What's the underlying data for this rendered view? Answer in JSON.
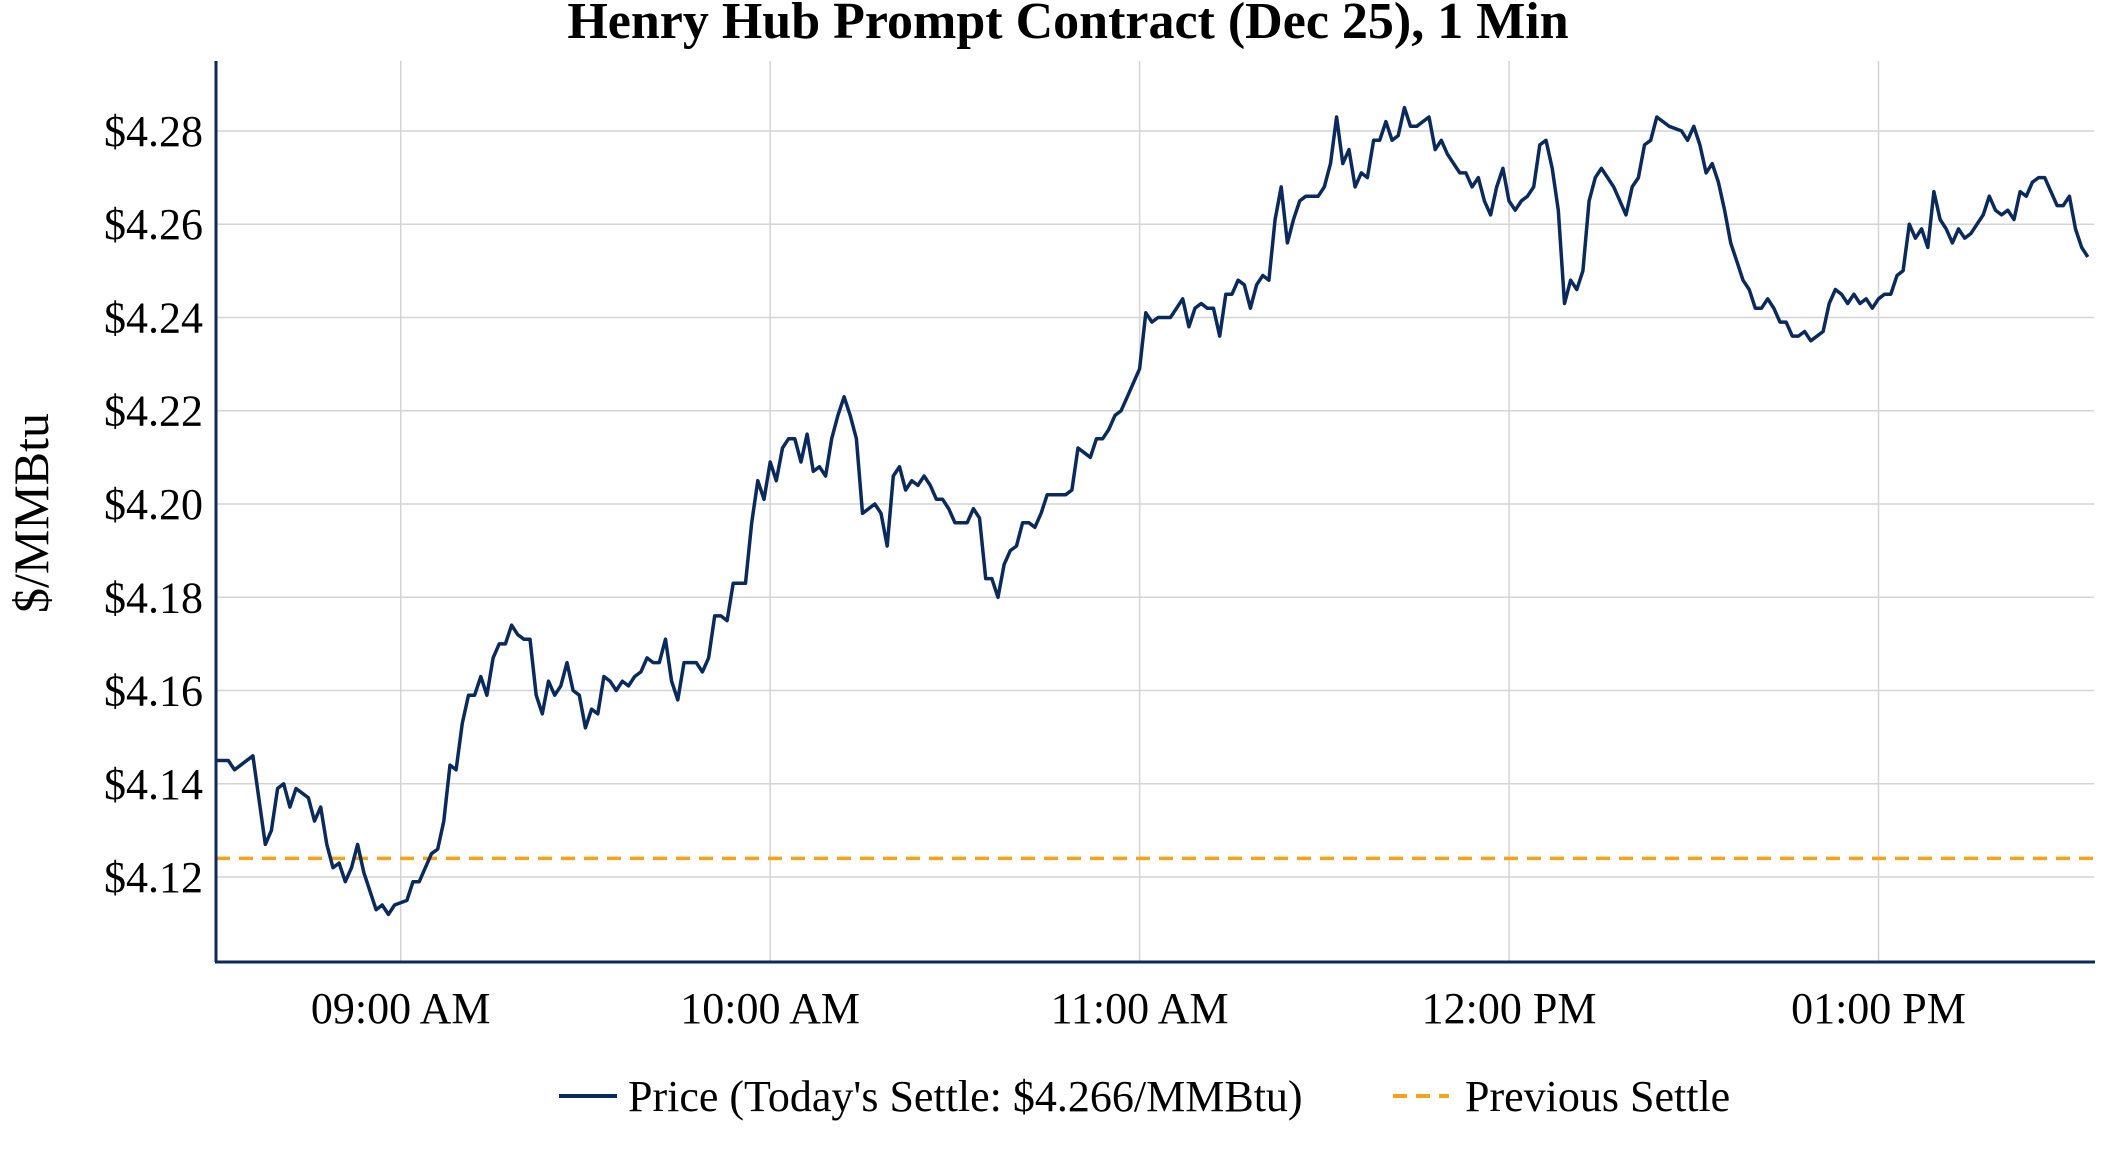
{
  "chart_data": {
    "type": "line",
    "title": "Henry Hub Prompt Contract (Dec 25), 1 Min",
    "xlabel": "",
    "ylabel": "$/MMBtu",
    "xlim": [
      "08:30",
      "13:35"
    ],
    "ylim": [
      4.102,
      4.295
    ],
    "x_ticks": [
      {
        "time": "09:00",
        "label": "09:00 AM"
      },
      {
        "time": "10:00",
        "label": "10:00 AM"
      },
      {
        "time": "11:00",
        "label": "11:00 AM"
      },
      {
        "time": "12:00",
        "label": "12:00 PM"
      },
      {
        "time": "13:00",
        "label": "01:00 PM"
      }
    ],
    "y_ticks": [
      {
        "value": 4.12,
        "label": "$4.12"
      },
      {
        "value": 4.14,
        "label": "$4.14"
      },
      {
        "value": 4.16,
        "label": "$4.16"
      },
      {
        "value": 4.18,
        "label": "$4.18"
      },
      {
        "value": 4.2,
        "label": "$4.20"
      },
      {
        "value": 4.22,
        "label": "$4.22"
      },
      {
        "value": 4.24,
        "label": "$4.24"
      },
      {
        "value": 4.26,
        "label": "$4.26"
      },
      {
        "value": 4.28,
        "label": "$4.28"
      }
    ],
    "grid": true,
    "legend_placement": "bottom-center",
    "colors": {
      "price": "#0b2a5c",
      "previous_settle": "#f7a21b",
      "axis": "#0b2a5c",
      "grid": "#d4d4d4"
    },
    "series": [
      {
        "name": "Price (Today's Settle: $4.266/MMBtu)",
        "style": "solid",
        "points": [
          [
            "08:30",
            4.145
          ],
          [
            "08:32",
            4.145
          ],
          [
            "08:33",
            4.143
          ],
          [
            "08:36",
            4.146
          ],
          [
            "08:38",
            4.127
          ],
          [
            "08:39",
            4.13
          ],
          [
            "08:40",
            4.139
          ],
          [
            "08:41",
            4.14
          ],
          [
            "08:42",
            4.135
          ],
          [
            "08:43",
            4.139
          ],
          [
            "08:45",
            4.137
          ],
          [
            "08:46",
            4.132
          ],
          [
            "08:47",
            4.135
          ],
          [
            "08:48",
            4.127
          ],
          [
            "08:49",
            4.122
          ],
          [
            "08:50",
            4.123
          ],
          [
            "08:51",
            4.119
          ],
          [
            "08:52",
            4.122
          ],
          [
            "08:53",
            4.127
          ],
          [
            "08:54",
            4.121
          ],
          [
            "08:56",
            4.113
          ],
          [
            "08:57",
            4.114
          ],
          [
            "08:58",
            4.112
          ],
          [
            "08:59",
            4.114
          ],
          [
            "09:01",
            4.115
          ],
          [
            "09:02",
            4.119
          ],
          [
            "09:03",
            4.119
          ],
          [
            "09:05",
            4.125
          ],
          [
            "09:06",
            4.126
          ],
          [
            "09:07",
            4.132
          ],
          [
            "09:08",
            4.144
          ],
          [
            "09:09",
            4.143
          ],
          [
            "09:10",
            4.153
          ],
          [
            "09:11",
            4.159
          ],
          [
            "09:12",
            4.159
          ],
          [
            "09:13",
            4.163
          ],
          [
            "09:14",
            4.159
          ],
          [
            "09:15",
            4.167
          ],
          [
            "09:16",
            4.17
          ],
          [
            "09:17",
            4.17
          ],
          [
            "09:18",
            4.174
          ],
          [
            "09:19",
            4.172
          ],
          [
            "09:20",
            4.171
          ],
          [
            "09:21",
            4.171
          ],
          [
            "09:22",
            4.159
          ],
          [
            "09:23",
            4.155
          ],
          [
            "09:24",
            4.162
          ],
          [
            "09:25",
            4.159
          ],
          [
            "09:26",
            4.161
          ],
          [
            "09:27",
            4.166
          ],
          [
            "09:28",
            4.16
          ],
          [
            "09:29",
            4.159
          ],
          [
            "09:30",
            4.152
          ],
          [
            "09:31",
            4.156
          ],
          [
            "09:32",
            4.155
          ],
          [
            "09:33",
            4.163
          ],
          [
            "09:34",
            4.162
          ],
          [
            "09:35",
            4.16
          ],
          [
            "09:36",
            4.162
          ],
          [
            "09:37",
            4.161
          ],
          [
            "09:38",
            4.163
          ],
          [
            "09:39",
            4.164
          ],
          [
            "09:40",
            4.167
          ],
          [
            "09:41",
            4.166
          ],
          [
            "09:42",
            4.166
          ],
          [
            "09:43",
            4.171
          ],
          [
            "09:44",
            4.162
          ],
          [
            "09:45",
            4.158
          ],
          [
            "09:46",
            4.166
          ],
          [
            "09:47",
            4.166
          ],
          [
            "09:48",
            4.166
          ],
          [
            "09:49",
            4.164
          ],
          [
            "09:50",
            4.167
          ],
          [
            "09:51",
            4.176
          ],
          [
            "09:52",
            4.176
          ],
          [
            "09:53",
            4.175
          ],
          [
            "09:54",
            4.183
          ],
          [
            "09:56",
            4.183
          ],
          [
            "09:57",
            4.196
          ],
          [
            "09:58",
            4.205
          ],
          [
            "09:59",
            4.201
          ],
          [
            "10:00",
            4.209
          ],
          [
            "10:01",
            4.205
          ],
          [
            "10:02",
            4.212
          ],
          [
            "10:03",
            4.214
          ],
          [
            "10:04",
            4.214
          ],
          [
            "10:05",
            4.209
          ],
          [
            "10:06",
            4.215
          ],
          [
            "10:07",
            4.207
          ],
          [
            "10:08",
            4.208
          ],
          [
            "10:09",
            4.206
          ],
          [
            "10:10",
            4.214
          ],
          [
            "10:11",
            4.219
          ],
          [
            "10:12",
            4.223
          ],
          [
            "10:13",
            4.219
          ],
          [
            "10:14",
            4.214
          ],
          [
            "10:15",
            4.198
          ],
          [
            "10:16",
            4.199
          ],
          [
            "10:17",
            4.2
          ],
          [
            "10:18",
            4.198
          ],
          [
            "10:19",
            4.191
          ],
          [
            "10:20",
            4.206
          ],
          [
            "10:21",
            4.208
          ],
          [
            "10:22",
            4.203
          ],
          [
            "10:23",
            4.205
          ],
          [
            "10:24",
            4.204
          ],
          [
            "10:25",
            4.206
          ],
          [
            "10:26",
            4.204
          ],
          [
            "10:27",
            4.201
          ],
          [
            "10:28",
            4.201
          ],
          [
            "10:29",
            4.199
          ],
          [
            "10:30",
            4.196
          ],
          [
            "10:32",
            4.196
          ],
          [
            "10:33",
            4.199
          ],
          [
            "10:34",
            4.197
          ],
          [
            "10:35",
            4.184
          ],
          [
            "10:36",
            4.184
          ],
          [
            "10:37",
            4.18
          ],
          [
            "10:38",
            4.187
          ],
          [
            "10:39",
            4.19
          ],
          [
            "10:40",
            4.191
          ],
          [
            "10:41",
            4.196
          ],
          [
            "10:42",
            4.196
          ],
          [
            "10:43",
            4.195
          ],
          [
            "10:44",
            4.198
          ],
          [
            "10:45",
            4.202
          ],
          [
            "10:48",
            4.202
          ],
          [
            "10:49",
            4.203
          ],
          [
            "10:50",
            4.212
          ],
          [
            "10:51",
            4.211
          ],
          [
            "10:52",
            4.21
          ],
          [
            "10:53",
            4.214
          ],
          [
            "10:54",
            4.214
          ],
          [
            "10:55",
            4.216
          ],
          [
            "10:56",
            4.219
          ],
          [
            "10:57",
            4.22
          ],
          [
            "10:58",
            4.223
          ],
          [
            "11:00",
            4.229
          ],
          [
            "11:01",
            4.241
          ],
          [
            "11:02",
            4.239
          ],
          [
            "11:03",
            4.24
          ],
          [
            "11:05",
            4.24
          ],
          [
            "11:06",
            4.242
          ],
          [
            "11:07",
            4.244
          ],
          [
            "11:08",
            4.238
          ],
          [
            "11:09",
            4.242
          ],
          [
            "11:10",
            4.243
          ],
          [
            "11:11",
            4.242
          ],
          [
            "11:12",
            4.242
          ],
          [
            "11:13",
            4.236
          ],
          [
            "11:14",
            4.245
          ],
          [
            "11:15",
            4.245
          ],
          [
            "11:16",
            4.248
          ],
          [
            "11:17",
            4.247
          ],
          [
            "11:18",
            4.242
          ],
          [
            "11:19",
            4.247
          ],
          [
            "11:20",
            4.249
          ],
          [
            "11:21",
            4.248
          ],
          [
            "11:22",
            4.261
          ],
          [
            "11:23",
            4.268
          ],
          [
            "11:24",
            4.256
          ],
          [
            "11:25",
            4.261
          ],
          [
            "11:26",
            4.265
          ],
          [
            "11:27",
            4.266
          ],
          [
            "11:29",
            4.266
          ],
          [
            "11:30",
            4.268
          ],
          [
            "11:31",
            4.273
          ],
          [
            "11:32",
            4.283
          ],
          [
            "11:33",
            4.273
          ],
          [
            "11:34",
            4.276
          ],
          [
            "11:35",
            4.268
          ],
          [
            "11:36",
            4.271
          ],
          [
            "11:37",
            4.27
          ],
          [
            "11:38",
            4.278
          ],
          [
            "11:39",
            4.278
          ],
          [
            "11:40",
            4.282
          ],
          [
            "11:41",
            4.278
          ],
          [
            "11:42",
            4.279
          ],
          [
            "11:43",
            4.285
          ],
          [
            "11:44",
            4.281
          ],
          [
            "11:45",
            4.281
          ],
          [
            "11:47",
            4.283
          ],
          [
            "11:48",
            4.276
          ],
          [
            "11:49",
            4.278
          ],
          [
            "11:50",
            4.275
          ],
          [
            "11:52",
            4.271
          ],
          [
            "11:53",
            4.271
          ],
          [
            "11:54",
            4.268
          ],
          [
            "11:55",
            4.27
          ],
          [
            "11:56",
            4.265
          ],
          [
            "11:57",
            4.262
          ],
          [
            "11:58",
            4.268
          ],
          [
            "11:59",
            4.272
          ],
          [
            "12:00",
            4.265
          ],
          [
            "12:01",
            4.263
          ],
          [
            "12:02",
            4.265
          ],
          [
            "12:03",
            4.266
          ],
          [
            "12:04",
            4.268
          ],
          [
            "12:05",
            4.277
          ],
          [
            "12:06",
            4.278
          ],
          [
            "12:07",
            4.272
          ],
          [
            "12:08",
            4.263
          ],
          [
            "12:09",
            4.243
          ],
          [
            "12:10",
            4.248
          ],
          [
            "12:11",
            4.246
          ],
          [
            "12:12",
            4.25
          ],
          [
            "12:13",
            4.265
          ],
          [
            "12:14",
            4.27
          ],
          [
            "12:15",
            4.272
          ],
          [
            "12:16",
            4.27
          ],
          [
            "12:17",
            4.268
          ],
          [
            "12:18",
            4.265
          ],
          [
            "12:19",
            4.262
          ],
          [
            "12:20",
            4.268
          ],
          [
            "12:21",
            4.27
          ],
          [
            "12:22",
            4.277
          ],
          [
            "12:23",
            4.278
          ],
          [
            "12:24",
            4.283
          ],
          [
            "12:25",
            4.282
          ],
          [
            "12:26",
            4.281
          ],
          [
            "12:28",
            4.28
          ],
          [
            "12:29",
            4.278
          ],
          [
            "12:30",
            4.281
          ],
          [
            "12:31",
            4.277
          ],
          [
            "12:32",
            4.271
          ],
          [
            "12:33",
            4.273
          ],
          [
            "12:34",
            4.269
          ],
          [
            "12:35",
            4.263
          ],
          [
            "12:36",
            4.256
          ],
          [
            "12:37",
            4.252
          ],
          [
            "12:38",
            4.248
          ],
          [
            "12:39",
            4.246
          ],
          [
            "12:40",
            4.242
          ],
          [
            "12:41",
            4.242
          ],
          [
            "12:42",
            4.244
          ],
          [
            "12:43",
            4.242
          ],
          [
            "12:44",
            4.239
          ],
          [
            "12:45",
            4.239
          ],
          [
            "12:46",
            4.236
          ],
          [
            "12:47",
            4.236
          ],
          [
            "12:48",
            4.237
          ],
          [
            "12:49",
            4.235
          ],
          [
            "12:51",
            4.237
          ],
          [
            "12:52",
            4.243
          ],
          [
            "12:53",
            4.246
          ],
          [
            "12:54",
            4.245
          ],
          [
            "12:55",
            4.243
          ],
          [
            "12:56",
            4.245
          ],
          [
            "12:57",
            4.243
          ],
          [
            "12:58",
            4.244
          ],
          [
            "12:59",
            4.242
          ],
          [
            "13:00",
            4.244
          ],
          [
            "13:01",
            4.245
          ],
          [
            "13:02",
            4.245
          ],
          [
            "13:03",
            4.249
          ],
          [
            "13:04",
            4.25
          ],
          [
            "13:05",
            4.26
          ],
          [
            "13:06",
            4.257
          ],
          [
            "13:07",
            4.259
          ],
          [
            "13:08",
            4.255
          ],
          [
            "13:09",
            4.267
          ],
          [
            "13:10",
            4.261
          ],
          [
            "13:11",
            4.259
          ],
          [
            "13:12",
            4.256
          ],
          [
            "13:13",
            4.259
          ],
          [
            "13:14",
            4.257
          ],
          [
            "13:15",
            4.258
          ],
          [
            "13:16",
            4.26
          ],
          [
            "13:17",
            4.262
          ],
          [
            "13:18",
            4.266
          ],
          [
            "13:19",
            4.263
          ],
          [
            "13:20",
            4.262
          ],
          [
            "13:21",
            4.263
          ],
          [
            "13:22",
            4.261
          ],
          [
            "13:23",
            4.267
          ],
          [
            "13:24",
            4.266
          ],
          [
            "13:25",
            4.269
          ],
          [
            "13:26",
            4.27
          ],
          [
            "13:27",
            4.27
          ],
          [
            "13:28",
            4.267
          ],
          [
            "13:29",
            4.264
          ],
          [
            "13:30",
            4.264
          ],
          [
            "13:31",
            4.266
          ],
          [
            "13:32",
            4.259
          ],
          [
            "13:33",
            4.255
          ],
          [
            "13:34",
            4.253
          ]
        ]
      },
      {
        "name": "Previous Settle",
        "style": "dashed",
        "value": 4.124
      }
    ]
  }
}
